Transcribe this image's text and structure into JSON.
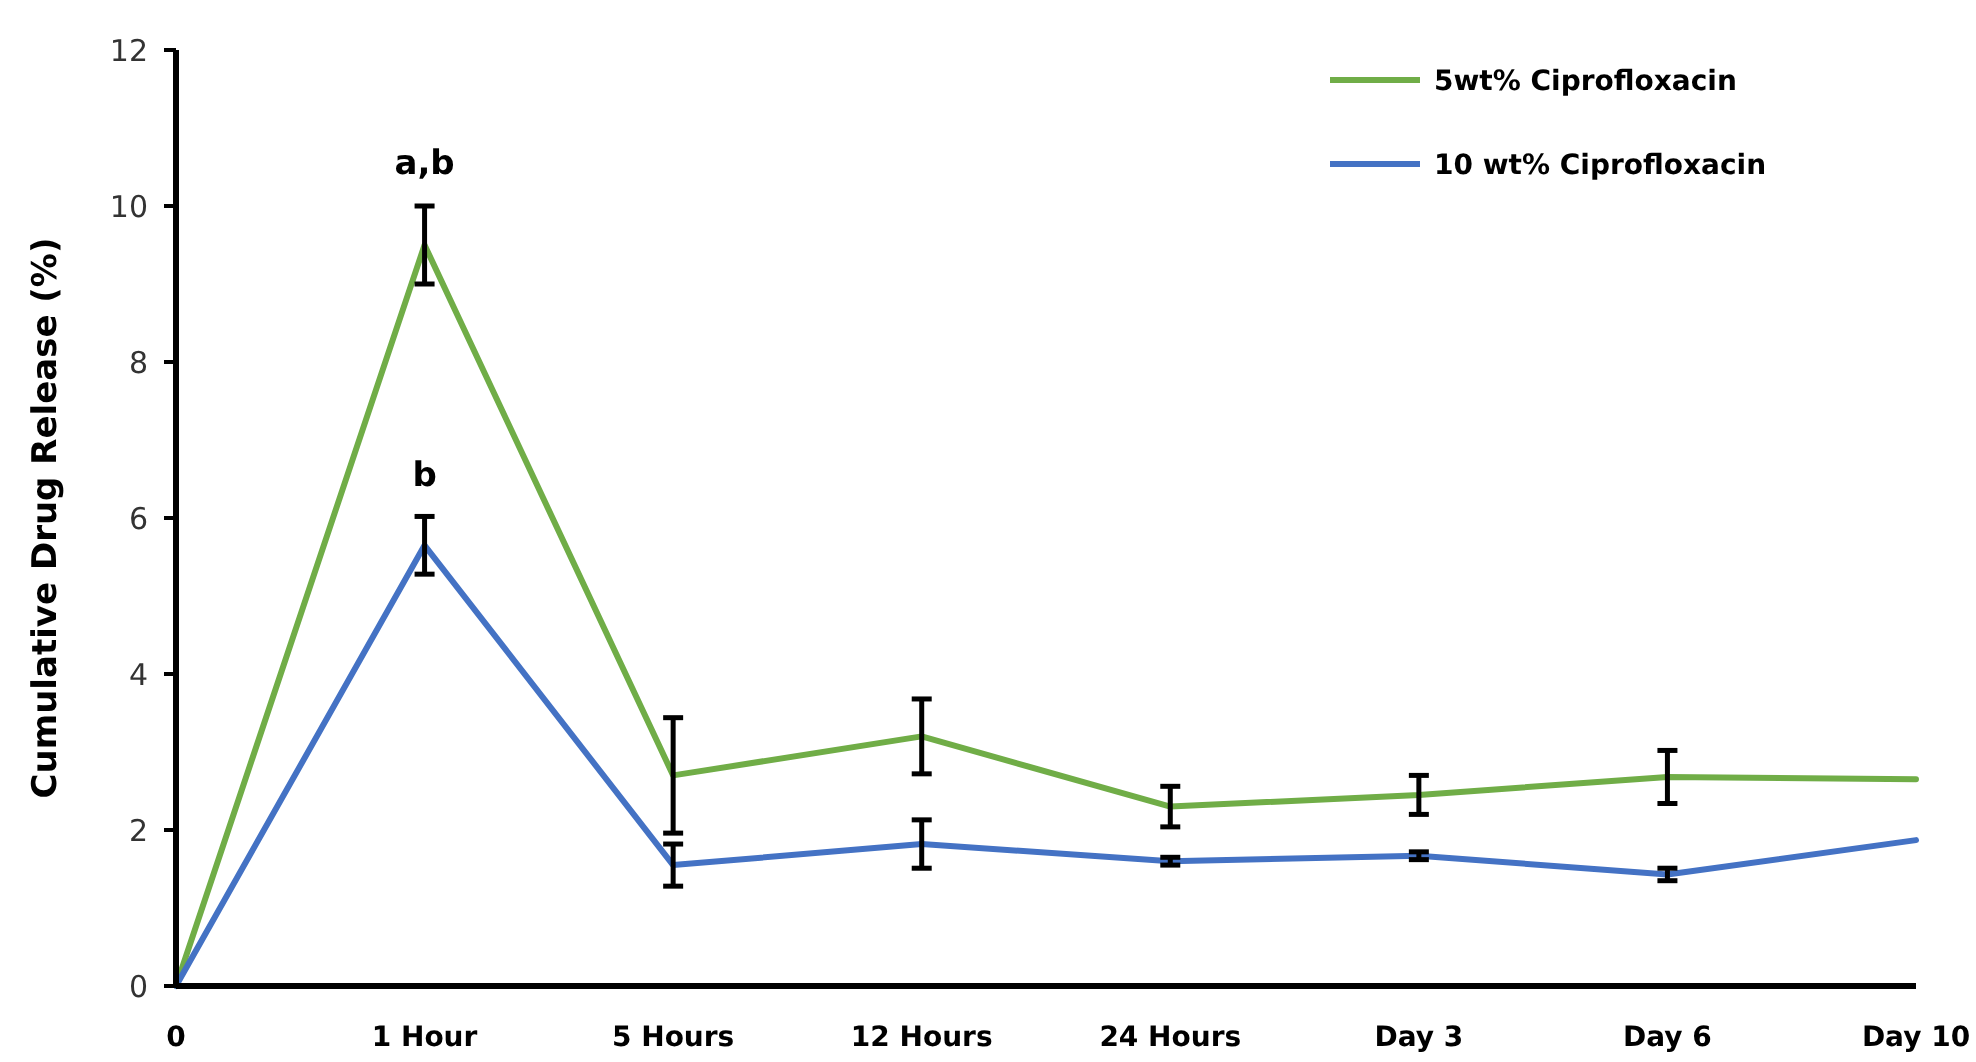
{
  "chart_data": {
    "type": "line",
    "ylabel": "Cumulative Drug Release (%)",
    "categories": [
      "0",
      "1 Hour",
      "5 Hours",
      "12 Hours",
      "24 Hours",
      "Day 3",
      "Day 6",
      "Day 10"
    ],
    "series": [
      {
        "name": "5wt% Ciprofloxacin",
        "color": "#70ad47",
        "values": [
          0,
          9.5,
          2.7,
          3.2,
          2.3,
          2.45,
          2.68,
          2.65
        ],
        "errors": [
          null,
          0.5,
          0.74,
          0.48,
          0.26,
          0.25,
          0.34,
          null
        ]
      },
      {
        "name": "10 wt% Ciprofloxacin",
        "color": "#4472c4",
        "values": [
          0,
          5.65,
          1.55,
          1.82,
          1.6,
          1.67,
          1.43,
          1.87
        ],
        "errors": [
          null,
          0.37,
          0.27,
          0.31,
          0.05,
          0.05,
          0.08,
          null
        ]
      }
    ],
    "ylim": [
      0,
      12
    ],
    "yticks": [
      0,
      2,
      4,
      6,
      8,
      10,
      12
    ],
    "grid": false,
    "legend": "top right",
    "marker": "none",
    "line_style": "solid",
    "annotations": [
      {
        "text": "a,b",
        "x": "1 Hour",
        "y": 10.05
      },
      {
        "text": "b",
        "x": "1 Hour",
        "y": 6.05
      }
    ]
  }
}
